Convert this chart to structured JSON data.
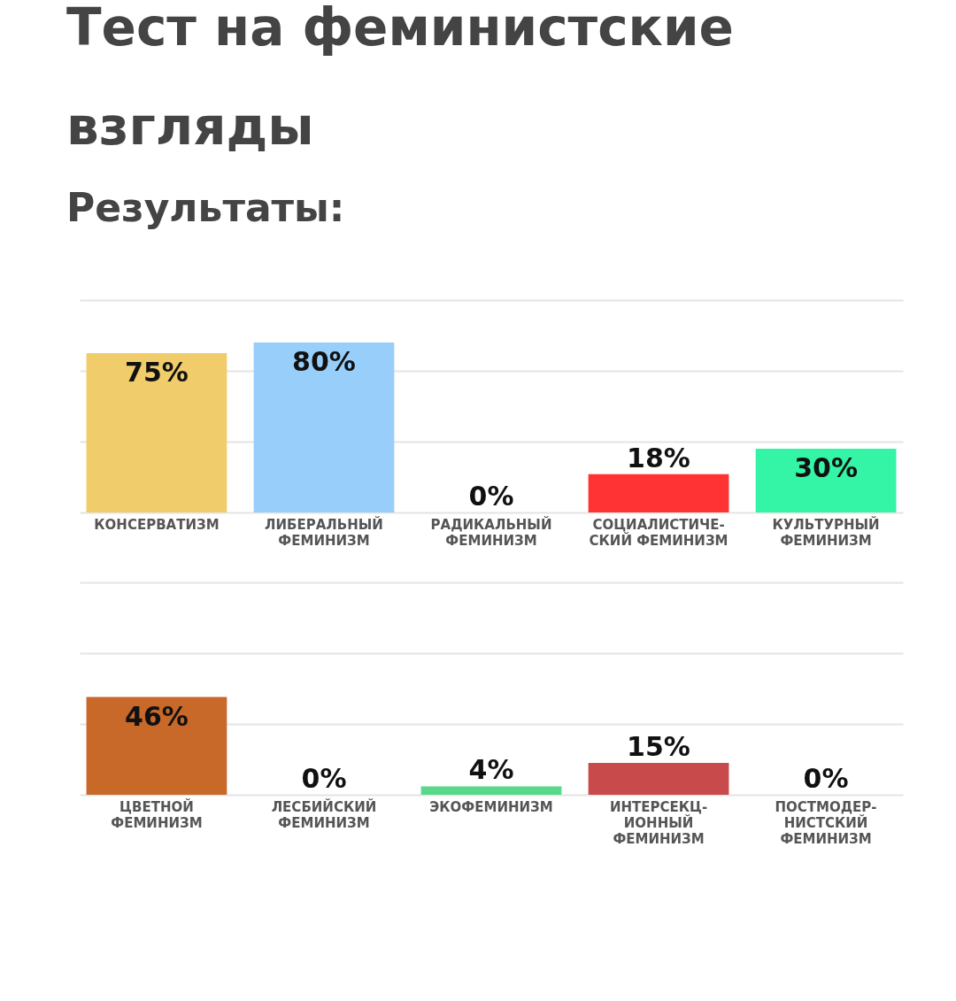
{
  "chart_data": [
    {
      "type": "bar",
      "title": "Тест на феминистские взгляды",
      "subtitle": "Результаты:",
      "categories": [
        "КОНСЕРВАТИЗМ",
        "ЛИБЕРАЛЬНЫЙ\nФЕМИНИЗМ",
        "РАДИКАЛЬНЫЙ\nФЕМИНИЗМ",
        "СОЦИАЛИСТИЧЕ-\nСКИЙ ФЕМИНИЗМ",
        "КУЛЬТУРНЫЙ\nФЕМИНИЗМ"
      ],
      "values": [
        75,
        80,
        0,
        18,
        30
      ],
      "value_labels": [
        "75%",
        "80%",
        "0%",
        "18%",
        "30%"
      ],
      "colors": [
        "#f0cc6a",
        "#98cefa",
        "#cccccc",
        "#ff3333",
        "#33f5a5"
      ],
      "ylim": [
        0,
        100
      ],
      "yticks": [
        {
          "value": 0,
          "label": null
        },
        {
          "value": 33.3,
          "label": null
        },
        {
          "value": 66.7,
          "label": null
        },
        {
          "value": 100,
          "label": null
        }
      ],
      "grid": "y",
      "tick_labels": "x"
    },
    {
      "type": "bar",
      "categories": [
        "ЦВЕТНОЙ\nФЕМИНИЗМ",
        "ЛЕСБИЙСКИЙ\nФЕМИНИЗМ",
        "ЭКОФЕМИНИЗМ",
        "ИНТЕРСЕКЦ-\nИОННЫЙ\nФЕМИНИЗМ",
        "ПОСТМОДЕР-\nНИСТСКИЙ\nФЕМИНИЗМ"
      ],
      "values": [
        46,
        0,
        4,
        15,
        0
      ],
      "value_labels": [
        "46%",
        "0%",
        "4%",
        "15%",
        "0%"
      ],
      "colors": [
        "#c8692a",
        "#cccccc",
        "#5ad88a",
        "#c84a4a",
        "#cccccc"
      ],
      "ylim": [
        0,
        100
      ],
      "yticks": [
        {
          "value": 0,
          "label": null
        },
        {
          "value": 33.3,
          "label": null
        },
        {
          "value": 66.7,
          "label": null
        },
        {
          "value": 100,
          "label": null
        }
      ],
      "grid": "y",
      "tick_labels": "x"
    }
  ]
}
